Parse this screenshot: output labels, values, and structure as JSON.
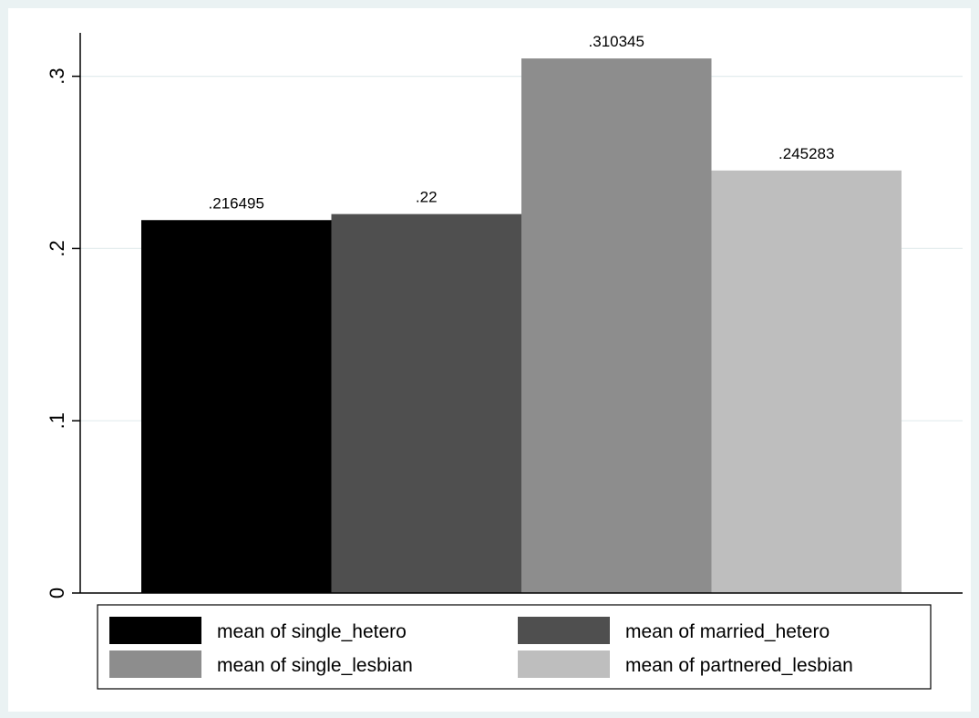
{
  "chart_data": {
    "type": "bar",
    "title": "",
    "xlabel": "",
    "ylabel": "",
    "ylim": [
      0,
      0.33
    ],
    "yticks": [
      {
        "value": 0,
        "label": "0"
      },
      {
        "value": 0.1,
        "label": ".1"
      },
      {
        "value": 0.2,
        "label": ".2"
      },
      {
        "value": 0.3,
        "label": ".3"
      }
    ],
    "grid": true,
    "legend_position": "bottom",
    "series": [
      {
        "name": "mean of single_hetero",
        "value": 0.216495,
        "label": ".216495",
        "color": "#000000"
      },
      {
        "name": "mean of married_hetero",
        "value": 0.22,
        "label": ".22",
        "color": "#4f4f4f"
      },
      {
        "name": "mean of single_lesbian",
        "value": 0.310345,
        "label": ".310345",
        "color": "#8d8d8d"
      },
      {
        "name": "mean of partnered_lesbian",
        "value": 0.245283,
        "label": ".245283",
        "color": "#bebebe"
      }
    ]
  },
  "colors": {
    "outer_background": "#eaf2f3",
    "plot_background": "#ffffff",
    "gridline": "#e3ecee"
  }
}
